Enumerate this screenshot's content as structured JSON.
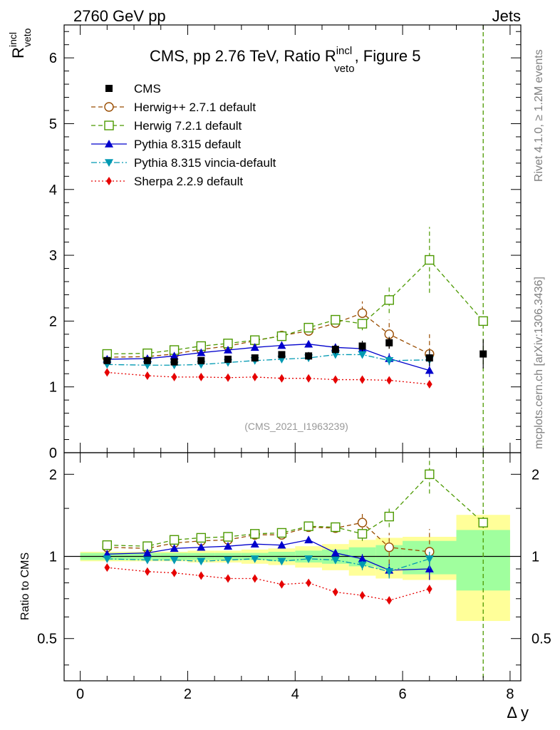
{
  "header": {
    "left": "2760 GeV pp",
    "right": "Jets"
  },
  "side_labels": {
    "top": "Rivet 4.1.0, ≥ 1.2M events",
    "bottom": "mcplots.cern.ch [arXiv:1306.3436]"
  },
  "chart_data": {
    "type": "line",
    "title_parts": {
      "main": "CMS, pp 2.76 TeV, Ratio R",
      "sup": "incl",
      "sub": "veto",
      "tail": ", Figure 5"
    },
    "ylabel_parts": {
      "base": "R",
      "sup": "incl",
      "sub": "veto"
    },
    "ratio_ylabel": "Ratio to CMS",
    "xlabel": "Δ y",
    "watermark": "(CMS_2021_I1963239)",
    "xlim": [
      -0.3,
      8.2
    ],
    "ylim": [
      0,
      6.5
    ],
    "ratio_ylim": [
      0.35,
      2.4
    ],
    "x_ticks": [
      "0",
      "2",
      "4",
      "6",
      "8"
    ],
    "y_ticks": [
      "0",
      "1",
      "2",
      "3",
      "4",
      "5",
      "6"
    ],
    "ratio_ticks": [
      "0.5",
      "1",
      "2"
    ],
    "x": [
      0.5,
      1.25,
      1.75,
      2.25,
      2.75,
      3.25,
      3.75,
      4.25,
      4.75,
      5.25,
      5.75,
      6.5,
      7.5
    ],
    "x_edges": [
      0,
      1,
      1.5,
      2,
      2.5,
      3,
      3.5,
      4,
      4.5,
      5,
      5.5,
      6,
      7,
      8
    ],
    "data": {
      "name": "CMS",
      "values": [
        1.4,
        1.4,
        1.38,
        1.4,
        1.42,
        1.44,
        1.49,
        1.47,
        1.57,
        1.62,
        1.67,
        1.44,
        1.5
      ],
      "stat_band": [
        0.03,
        0.03,
        0.03,
        0.04,
        0.04,
        0.04,
        0.05,
        0.06,
        0.07,
        0.08,
        0.09,
        0.12,
        0.22
      ],
      "total_band": [
        0.04,
        0.04,
        0.04,
        0.05,
        0.05,
        0.06,
        0.07,
        0.08,
        0.1,
        0.15,
        0.17,
        0.2,
        0.38
      ]
    },
    "series": [
      {
        "name": "Herwig++ 2.7.1 default",
        "color": "#994c00",
        "marker": "circle-open",
        "dash": "6,4",
        "values": [
          1.45,
          1.46,
          1.5,
          1.57,
          1.62,
          1.7,
          1.78,
          1.85,
          1.97,
          2.12,
          1.8,
          1.5,
          null
        ],
        "errors": [
          0.02,
          0.02,
          0.02,
          0.02,
          0.02,
          0.03,
          0.03,
          0.04,
          0.06,
          0.18,
          0.22,
          0.3,
          null
        ]
      },
      {
        "name": "Herwig 7.2.1 default",
        "color": "#4c9900",
        "marker": "square-open",
        "dash": "6,4",
        "values": [
          1.5,
          1.51,
          1.56,
          1.62,
          1.66,
          1.71,
          1.77,
          1.9,
          2.02,
          1.96,
          2.32,
          2.93,
          2.0
        ],
        "errors": [
          0.02,
          0.02,
          0.02,
          0.02,
          0.03,
          0.03,
          0.04,
          0.05,
          0.07,
          0.1,
          0.2,
          0.5,
          null
        ]
      },
      {
        "name": "Pythia 8.315 default",
        "color": "#0000cc",
        "marker": "triangle-up",
        "dash": "",
        "values": [
          1.42,
          1.43,
          1.47,
          1.52,
          1.56,
          1.6,
          1.63,
          1.65,
          1.6,
          1.58,
          1.43,
          1.25,
          null
        ],
        "errors": [
          0.02,
          0.02,
          0.02,
          0.02,
          0.02,
          0.03,
          0.03,
          0.04,
          0.05,
          0.06,
          0.08,
          0.1,
          null
        ]
      },
      {
        "name": "Pythia 8.315 vincia-default",
        "color": "#0099b2",
        "marker": "triangle-down",
        "dash": "8,3,2,3",
        "values": [
          1.34,
          1.33,
          1.33,
          1.34,
          1.37,
          1.4,
          1.42,
          1.44,
          1.49,
          1.49,
          1.4,
          1.41,
          null
        ],
        "errors": [
          0.02,
          0.02,
          0.02,
          0.02,
          0.02,
          0.03,
          0.03,
          0.04,
          0.04,
          0.05,
          0.07,
          0.08,
          null
        ]
      },
      {
        "name": "Sherpa 2.2.9 default",
        "color": "#e60000",
        "marker": "diamond",
        "dash": "2,3",
        "values": [
          1.22,
          1.17,
          1.15,
          1.15,
          1.14,
          1.15,
          1.13,
          1.13,
          1.11,
          1.11,
          1.1,
          1.04,
          null
        ],
        "errors": [
          0.01,
          0.01,
          0.01,
          0.01,
          0.01,
          0.01,
          0.01,
          0.01,
          0.01,
          0.02,
          0.02,
          0.03,
          null
        ]
      }
    ],
    "ratios": [
      [
        1.08,
        1.07,
        1.12,
        1.14,
        1.15,
        1.2,
        1.2,
        1.28,
        1.27,
        1.33,
        1.08,
        1.04,
        null
      ],
      [
        1.1,
        1.09,
        1.15,
        1.17,
        1.18,
        1.21,
        1.22,
        1.29,
        1.28,
        1.21,
        1.4,
        2.0,
        1.33
      ],
      [
        1.02,
        1.03,
        1.07,
        1.08,
        1.09,
        1.11,
        1.1,
        1.15,
        1.03,
        0.98,
        0.89,
        0.9,
        null
      ],
      [
        0.98,
        0.97,
        0.97,
        0.96,
        0.97,
        0.98,
        0.96,
        0.98,
        0.97,
        0.93,
        0.88,
        0.98,
        null
      ],
      [
        0.91,
        0.88,
        0.87,
        0.85,
        0.83,
        0.83,
        0.79,
        0.8,
        0.74,
        0.72,
        0.69,
        0.76,
        null
      ]
    ],
    "ratio_errors": [
      [
        0.02,
        0.02,
        0.02,
        0.02,
        0.02,
        0.02,
        0.03,
        0.04,
        0.05,
        0.1,
        0.14,
        0.22,
        null
      ],
      [
        0.02,
        0.02,
        0.02,
        0.02,
        0.02,
        0.03,
        0.03,
        0.04,
        0.05,
        0.07,
        0.12,
        0.3,
        null
      ],
      [
        0.01,
        0.01,
        0.02,
        0.02,
        0.02,
        0.02,
        0.02,
        0.03,
        0.03,
        0.04,
        0.05,
        0.08,
        null
      ],
      [
        0.01,
        0.01,
        0.02,
        0.02,
        0.02,
        0.02,
        0.02,
        0.03,
        0.03,
        0.04,
        0.05,
        0.08,
        null
      ],
      [
        0.01,
        0.01,
        0.01,
        0.01,
        0.01,
        0.01,
        0.01,
        0.01,
        0.01,
        0.02,
        0.02,
        0.03,
        null
      ]
    ],
    "ratio_stat_band": [
      0.03,
      0.03,
      0.03,
      0.03,
      0.03,
      0.03,
      0.04,
      0.05,
      0.06,
      0.08,
      0.1,
      0.14,
      0.25
    ],
    "ratio_total_band": [
      0.04,
      0.04,
      0.04,
      0.05,
      0.05,
      0.06,
      0.07,
      0.09,
      0.11,
      0.15,
      0.17,
      0.18,
      0.42
    ],
    "vline_x": 7.5,
    "vline_color": "#4c9900",
    "band_colors": {
      "stat": "#a0ff9e",
      "total": "#ffff99"
    },
    "legend_position": "top-left"
  }
}
